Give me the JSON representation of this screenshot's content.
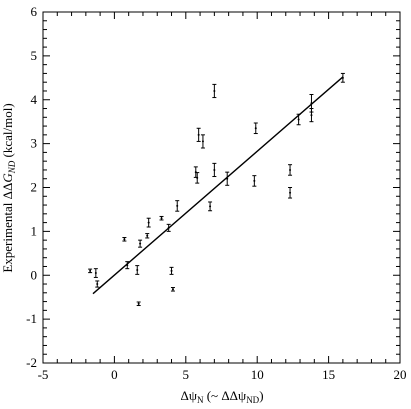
{
  "chart_data": {
    "type": "scatter",
    "title": "",
    "xlabel": {
      "symbol": "Δψ",
      "sub": "N",
      "paren_open": " (~ ΔΔψ",
      "paren_sub": "ND",
      "paren_close": ")"
    },
    "ylabel": {
      "prefix": "Experimental   ΔΔ",
      "symbol": "G",
      "sub": "ND",
      "unit": "   (kcal/mol)"
    },
    "xlim": [
      -5,
      20
    ],
    "ylim": [
      -2,
      6
    ],
    "x_ticks": [
      -5,
      0,
      5,
      10,
      15,
      20
    ],
    "y_ticks": [
      -2,
      -1,
      0,
      1,
      2,
      3,
      4,
      5,
      6
    ],
    "x_ticks_labels": [
      "-5",
      "0",
      "5",
      "10",
      "15",
      "20"
    ],
    "y_ticks_labels": [
      "-2",
      "-1",
      "0",
      "1",
      "2",
      "3",
      "4",
      "5",
      "6"
    ],
    "grid": false,
    "points": [
      {
        "x": -1.7,
        "y": 0.1,
        "err": 0.04
      },
      {
        "x": -1.3,
        "y": 0.05,
        "err": 0.1
      },
      {
        "x": -1.2,
        "y": -0.2,
        "err": 0.07
      },
      {
        "x": 0.7,
        "y": 0.82,
        "err": 0.04
      },
      {
        "x": 0.9,
        "y": 0.23,
        "err": 0.08
      },
      {
        "x": 1.6,
        "y": 0.12,
        "err": 0.1
      },
      {
        "x": 1.7,
        "y": -0.65,
        "err": 0.04
      },
      {
        "x": 1.8,
        "y": 0.72,
        "err": 0.08
      },
      {
        "x": 2.3,
        "y": 0.9,
        "err": 0.05
      },
      {
        "x": 2.4,
        "y": 1.2,
        "err": 0.1
      },
      {
        "x": 3.3,
        "y": 1.3,
        "err": 0.04
      },
      {
        "x": 3.8,
        "y": 1.08,
        "err": 0.08
      },
      {
        "x": 4.0,
        "y": 0.1,
        "err": 0.08
      },
      {
        "x": 4.1,
        "y": -0.32,
        "err": 0.04
      },
      {
        "x": 4.4,
        "y": 1.58,
        "err": 0.12
      },
      {
        "x": 5.7,
        "y": 2.35,
        "err": 0.12
      },
      {
        "x": 5.8,
        "y": 2.22,
        "err": 0.12
      },
      {
        "x": 5.9,
        "y": 3.2,
        "err": 0.15
      },
      {
        "x": 6.2,
        "y": 3.05,
        "err": 0.15
      },
      {
        "x": 6.7,
        "y": 1.57,
        "err": 0.1
      },
      {
        "x": 7.0,
        "y": 2.4,
        "err": 0.15
      },
      {
        "x": 7.0,
        "y": 4.2,
        "err": 0.15
      },
      {
        "x": 7.9,
        "y": 2.2,
        "err": 0.15
      },
      {
        "x": 9.8,
        "y": 2.15,
        "err": 0.12
      },
      {
        "x": 9.9,
        "y": 3.35,
        "err": 0.12
      },
      {
        "x": 12.3,
        "y": 2.4,
        "err": 0.12
      },
      {
        "x": 12.3,
        "y": 1.88,
        "err": 0.12
      },
      {
        "x": 12.9,
        "y": 3.55,
        "err": 0.12
      },
      {
        "x": 13.8,
        "y": 3.65,
        "err": 0.15
      },
      {
        "x": 13.8,
        "y": 3.92,
        "err": 0.2
      },
      {
        "x": 16.0,
        "y": 4.5,
        "err": 0.1
      }
    ],
    "fit_line": {
      "x1": -1.5,
      "y1": -0.42,
      "x2": 16.0,
      "y2": 4.52
    }
  }
}
